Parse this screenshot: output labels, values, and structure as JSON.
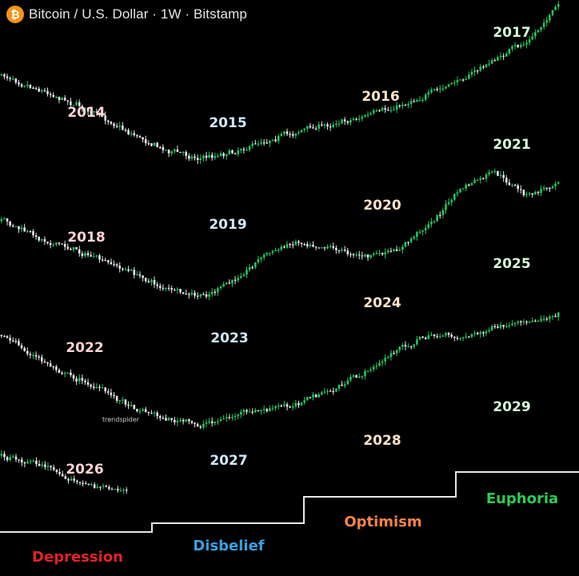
{
  "header": {
    "title": "Bitcoin / U.S. Dollar · 1W · Bitstamp",
    "icon": "bitcoin-logo-icon",
    "icon_color": "#f7931a"
  },
  "watermark": "trendspider",
  "colors": {
    "up_candle": "#22c55e",
    "down_candle": "#e5e7eb",
    "phase_line": "#e5e7eb",
    "depression": "#e32227",
    "disbelief": "#3aa0e0",
    "optimism": "#f4844a",
    "euphoria": "#2ecc55",
    "year_depression": "#ffd3d3",
    "year_disbelief": "#cfe8ff",
    "year_optimism": "#ffe3c8",
    "year_euphoria": "#d5ffd8"
  },
  "chart_data": {
    "type": "candlestick-overlay",
    "title": "Bitcoin / U.S. Dollar · 1W · Bitstamp",
    "phases": [
      "Depression",
      "Disbelief",
      "Optimism",
      "Euphoria"
    ],
    "cycles": [
      {
        "years": [
          "2014",
          "2015",
          "2016",
          "2017"
        ],
        "trend": [
          0.62,
          0.55,
          0.48,
          0.4,
          0.3,
          0.22,
          0.18,
          0.21,
          0.27,
          0.32,
          0.36,
          0.4,
          0.45,
          0.52,
          0.6,
          0.7,
          0.8,
          1.0
        ]
      },
      {
        "years": [
          "2018",
          "2019",
          "2020",
          "2021"
        ],
        "trend": [
          0.62,
          0.52,
          0.46,
          0.38,
          0.3,
          0.2,
          0.16,
          0.25,
          0.42,
          0.5,
          0.46,
          0.4,
          0.44,
          0.6,
          0.82,
          0.92,
          0.76,
          0.88
        ]
      },
      {
        "years": [
          "2022",
          "2023",
          "2024",
          "2025"
        ],
        "trend": [
          0.7,
          0.55,
          0.45,
          0.34,
          0.24,
          0.16,
          0.12,
          0.18,
          0.22,
          0.26,
          0.34,
          0.45,
          0.6,
          0.7,
          0.68,
          0.74,
          0.78,
          0.85
        ]
      },
      {
        "years": [
          "2026",
          "2027",
          "2028",
          "2029"
        ],
        "trend": [
          0.62,
          0.57,
          0.46,
          0.44
        ]
      }
    ]
  }
}
